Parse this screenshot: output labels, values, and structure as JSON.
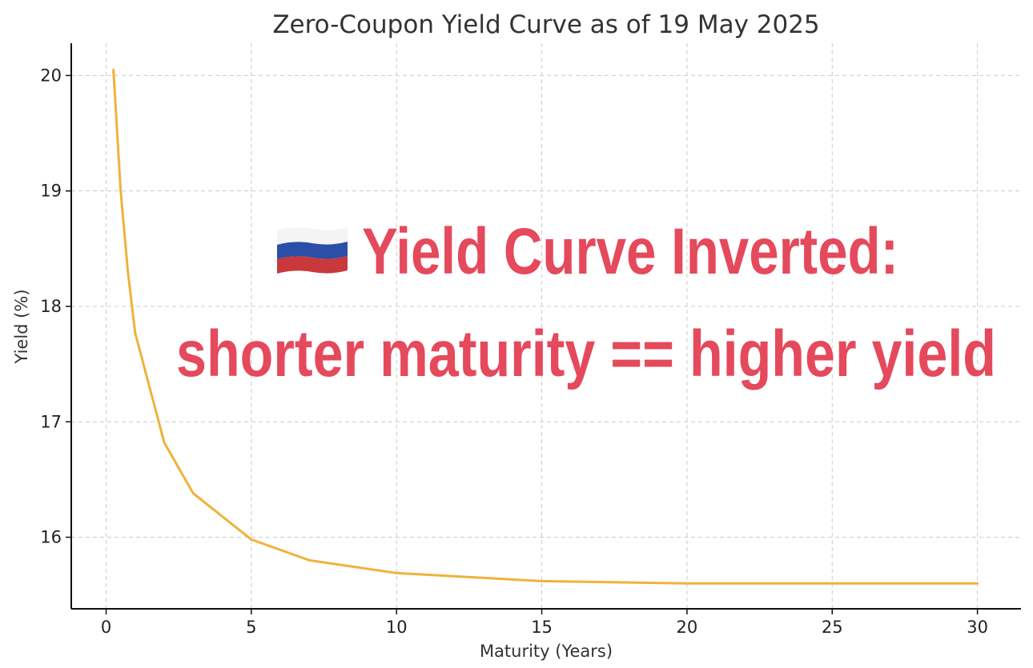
{
  "colors": {
    "series": "#f0b23a",
    "annotation": "#e5495c",
    "flag_white": "#f4f4f4",
    "flag_blue": "#2b4fa8",
    "flag_red": "#c9383a"
  },
  "chart_data": {
    "type": "line",
    "title": "Zero-Coupon Yield Curve as of 19 May 2025",
    "xlabel": "Maturity (Years)",
    "ylabel": "Yield (%)",
    "xlim": [
      -1.2,
      31.5
    ],
    "ylim": [
      15.38,
      20.28
    ],
    "xticks": [
      0,
      5,
      10,
      15,
      20,
      25,
      30
    ],
    "yticks": [
      16,
      17,
      18,
      19,
      20
    ],
    "grid": true,
    "series": [
      {
        "x": [
          0.25,
          0.5,
          0.75,
          1,
          2,
          3,
          5,
          7,
          10,
          15,
          20,
          25,
          30
        ],
        "y": [
          20.05,
          19.0,
          18.3,
          17.77,
          16.82,
          16.38,
          15.98,
          15.8,
          15.69,
          15.62,
          15.6,
          15.6,
          15.6
        ]
      }
    ],
    "annotation": {
      "icon": "russia-flag-icon",
      "line1": "Yield Curve Inverted:",
      "line2": "shorter maturity == higher yield"
    }
  }
}
